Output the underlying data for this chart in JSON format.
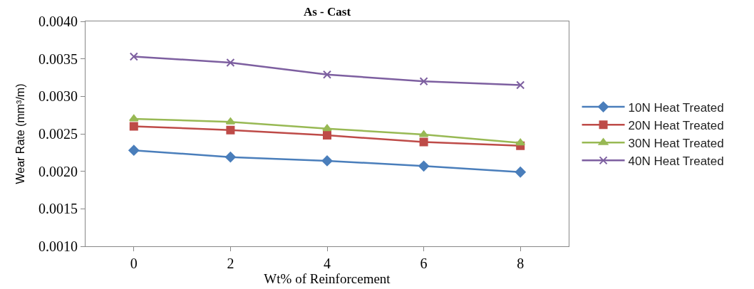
{
  "chart_data": {
    "type": "line",
    "title": "As - Cast",
    "xlabel": "Wt% of Reinforcement",
    "ylabel": "Wear Rate (mm³/m)",
    "x": [
      0,
      2,
      4,
      6,
      8
    ],
    "series": [
      {
        "name": "10N Heat Treated",
        "color": "#4a7ebb",
        "marker": "diamond",
        "values": [
          0.00228,
          0.00219,
          0.00214,
          0.00207,
          0.00199
        ]
      },
      {
        "name": "20N Heat Treated",
        "color": "#be4b48",
        "marker": "square",
        "values": [
          0.0026,
          0.00255,
          0.00248,
          0.00239,
          0.00234
        ]
      },
      {
        "name": "30N Heat Treated",
        "color": "#98b954",
        "marker": "triangle",
        "values": [
          0.0027,
          0.00266,
          0.00257,
          0.00249,
          0.00238
        ]
      },
      {
        "name": "40N Heat Treated",
        "color": "#7d5fa0",
        "marker": "cross",
        "values": [
          0.00353,
          0.00345,
          0.00329,
          0.0032,
          0.00315
        ]
      }
    ],
    "xlim": [
      -1,
      9
    ],
    "xticks": [
      0,
      2,
      4,
      6,
      8
    ],
    "ylim": [
      0.001,
      0.004
    ],
    "yticks": [
      {
        "value": 0.001,
        "label": "0.0010"
      },
      {
        "value": 0.0015,
        "label": "0.0015"
      },
      {
        "value": 0.002,
        "label": "0.0020"
      },
      {
        "value": 0.0025,
        "label": "0.0025"
      },
      {
        "value": 0.003,
        "label": "0.0030"
      },
      {
        "value": 0.0035,
        "label": "0.0035"
      },
      {
        "value": 0.004,
        "label": "0.0040"
      }
    ],
    "grid": false,
    "legend": "right"
  }
}
